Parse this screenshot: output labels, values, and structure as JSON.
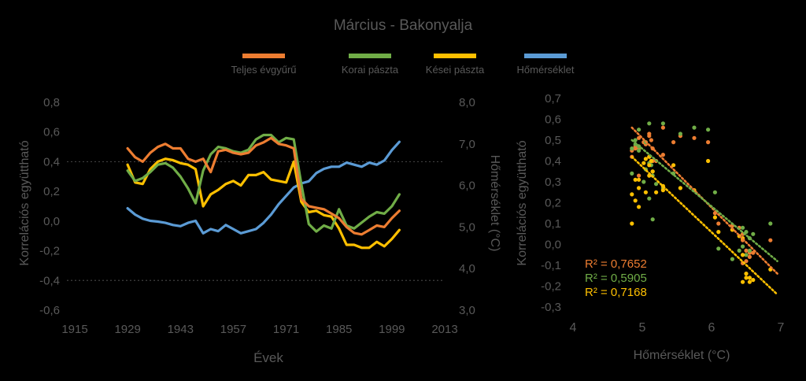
{
  "title": "Március - Bakonyalja",
  "colors": {
    "teljes": "#ED7D31",
    "korai": "#70AD47",
    "kesei": "#FFC000",
    "homerseklet": "#5B9BD5",
    "text": "#595959",
    "gridline": "#404040"
  },
  "legend": [
    {
      "key": "teljes",
      "label": "Teljes évgyűrű"
    },
    {
      "key": "korai",
      "label": "Korai pászta"
    },
    {
      "key": "kesei",
      "label": "Kései pászta"
    },
    {
      "key": "homerseklet",
      "label": "Hőmérséklet"
    }
  ],
  "chart_data": [
    {
      "type": "line",
      "xlabel": "Évek",
      "ylabel": "Korrelációs együttható",
      "y2label": "Hőmérséklet (°C)",
      "xlim": [
        1915,
        2013
      ],
      "ylim": [
        -0.6,
        0.8
      ],
      "y2lim": [
        3.0,
        8.0
      ],
      "xticks": [
        "1915",
        "1929",
        "1943",
        "1957",
        "1971",
        "1985",
        "1999",
        "2013"
      ],
      "yticks": [
        "-0,6",
        "-0,4",
        "-0,2",
        "0,0",
        "0,2",
        "0,4",
        "0,6",
        "0,8"
      ],
      "y2ticks": [
        "3,0",
        "4,0",
        "5,0",
        "6,0",
        "7,0",
        "8,0"
      ],
      "reference_lines": [
        0.4,
        -0.4
      ],
      "series": [
        {
          "key": "teljes",
          "name": "Teljes évgyűrű",
          "axis": "left",
          "x": [
            1929,
            1931,
            1933,
            1935,
            1937,
            1939,
            1941,
            1943,
            1945,
            1947,
            1949,
            1951,
            1953,
            1955,
            1957,
            1959,
            1961,
            1963,
            1965,
            1967,
            1969,
            1971,
            1973,
            1975,
            1977,
            1979,
            1981,
            1983,
            1985,
            1987,
            1989,
            1991,
            1993,
            1995,
            1997,
            1999,
            2001
          ],
          "values": [
            0.49,
            0.43,
            0.4,
            0.46,
            0.5,
            0.52,
            0.49,
            0.49,
            0.42,
            0.4,
            0.42,
            0.33,
            0.47,
            0.48,
            0.46,
            0.45,
            0.46,
            0.51,
            0.53,
            0.56,
            0.52,
            0.51,
            0.49,
            0.15,
            0.1,
            0.09,
            0.08,
            0.05,
            0.02,
            -0.04,
            -0.08,
            -0.09,
            -0.06,
            -0.03,
            -0.04,
            0.02,
            0.07
          ]
        },
        {
          "key": "korai",
          "name": "Korai pászta",
          "axis": "left",
          "x": [
            1929,
            1931,
            1933,
            1935,
            1937,
            1939,
            1941,
            1943,
            1945,
            1947,
            1949,
            1951,
            1953,
            1955,
            1957,
            1959,
            1961,
            1963,
            1965,
            1967,
            1969,
            1971,
            1973,
            1975,
            1977,
            1979,
            1981,
            1983,
            1985,
            1987,
            1989,
            1991,
            1993,
            1995,
            1997,
            1999,
            2001
          ],
          "values": [
            0.34,
            0.27,
            0.29,
            0.33,
            0.38,
            0.39,
            0.36,
            0.3,
            0.22,
            0.12,
            0.34,
            0.45,
            0.5,
            0.49,
            0.47,
            0.46,
            0.48,
            0.55,
            0.58,
            0.58,
            0.53,
            0.56,
            0.55,
            0.25,
            -0.02,
            -0.07,
            -0.03,
            -0.05,
            0.08,
            -0.03,
            -0.05,
            -0.01,
            0.03,
            0.06,
            0.05,
            0.1,
            0.18
          ]
        },
        {
          "key": "kesei",
          "name": "Kései pászta",
          "axis": "left",
          "x": [
            1929,
            1931,
            1933,
            1935,
            1937,
            1939,
            1941,
            1943,
            1945,
            1947,
            1949,
            1951,
            1953,
            1955,
            1957,
            1959,
            1961,
            1963,
            1965,
            1967,
            1969,
            1971,
            1973,
            1975,
            1977,
            1979,
            1981,
            1983,
            1985,
            1987,
            1989,
            1991,
            1993,
            1995,
            1997,
            1999,
            2001
          ],
          "values": [
            0.38,
            0.26,
            0.25,
            0.35,
            0.4,
            0.42,
            0.41,
            0.39,
            0.38,
            0.35,
            0.1,
            0.18,
            0.21,
            0.25,
            0.27,
            0.24,
            0.31,
            0.31,
            0.33,
            0.28,
            0.27,
            0.26,
            0.4,
            0.13,
            0.06,
            0.07,
            0.04,
            0.03,
            -0.05,
            -0.16,
            -0.16,
            -0.18,
            -0.18,
            -0.14,
            -0.17,
            -0.12,
            -0.06
          ]
        },
        {
          "key": "homerseklet",
          "name": "Hőmérséklet",
          "axis": "right",
          "x": [
            1929,
            1931,
            1933,
            1935,
            1937,
            1939,
            1941,
            1943,
            1945,
            1947,
            1949,
            1951,
            1953,
            1955,
            1957,
            1959,
            1961,
            1963,
            1965,
            1967,
            1969,
            1971,
            1973,
            1975,
            1977,
            1979,
            1981,
            1983,
            1985,
            1987,
            1989,
            1991,
            1993,
            1995,
            1997,
            1999,
            2001
          ],
          "values": [
            5.45,
            5.3,
            5.2,
            5.15,
            5.13,
            5.1,
            5.05,
            5.02,
            5.1,
            5.15,
            4.85,
            4.95,
            4.9,
            5.05,
            4.95,
            4.85,
            4.9,
            4.95,
            5.1,
            5.3,
            5.55,
            5.75,
            5.95,
            6.05,
            6.1,
            6.3,
            6.4,
            6.45,
            6.45,
            6.55,
            6.5,
            6.45,
            6.55,
            6.5,
            6.6,
            6.85,
            7.05
          ]
        }
      ]
    },
    {
      "type": "scatter",
      "xlabel": "Hőmérséklet (°C)",
      "ylabel": "Korrelációs együttható",
      "xlim": [
        4,
        7
      ],
      "ylim": [
        -0.3,
        0.7
      ],
      "xticks": [
        "4",
        "5",
        "6",
        "7"
      ],
      "yticks": [
        "-0,3",
        "-0,2",
        "-0,1",
        "0,0",
        "0,1",
        "0,2",
        "0,3",
        "0,4",
        "0,5",
        "0,6",
        "0,7"
      ],
      "trend_lines": [
        {
          "key": "teljes",
          "x": [
            4.85,
            6.95
          ],
          "y": [
            0.56,
            -0.14
          ]
        },
        {
          "key": "korai",
          "x": [
            4.85,
            6.95
          ],
          "y": [
            0.5,
            -0.08
          ]
        },
        {
          "key": "kesei",
          "x": [
            4.85,
            6.95
          ],
          "y": [
            0.42,
            -0.24
          ]
        }
      ],
      "r2": [
        {
          "key": "teljes",
          "text": "R² = 0,7652"
        },
        {
          "key": "korai",
          "text": "R² = 0,5905"
        },
        {
          "key": "kesei",
          "text": "R² = 0,7168"
        }
      ]
    }
  ]
}
